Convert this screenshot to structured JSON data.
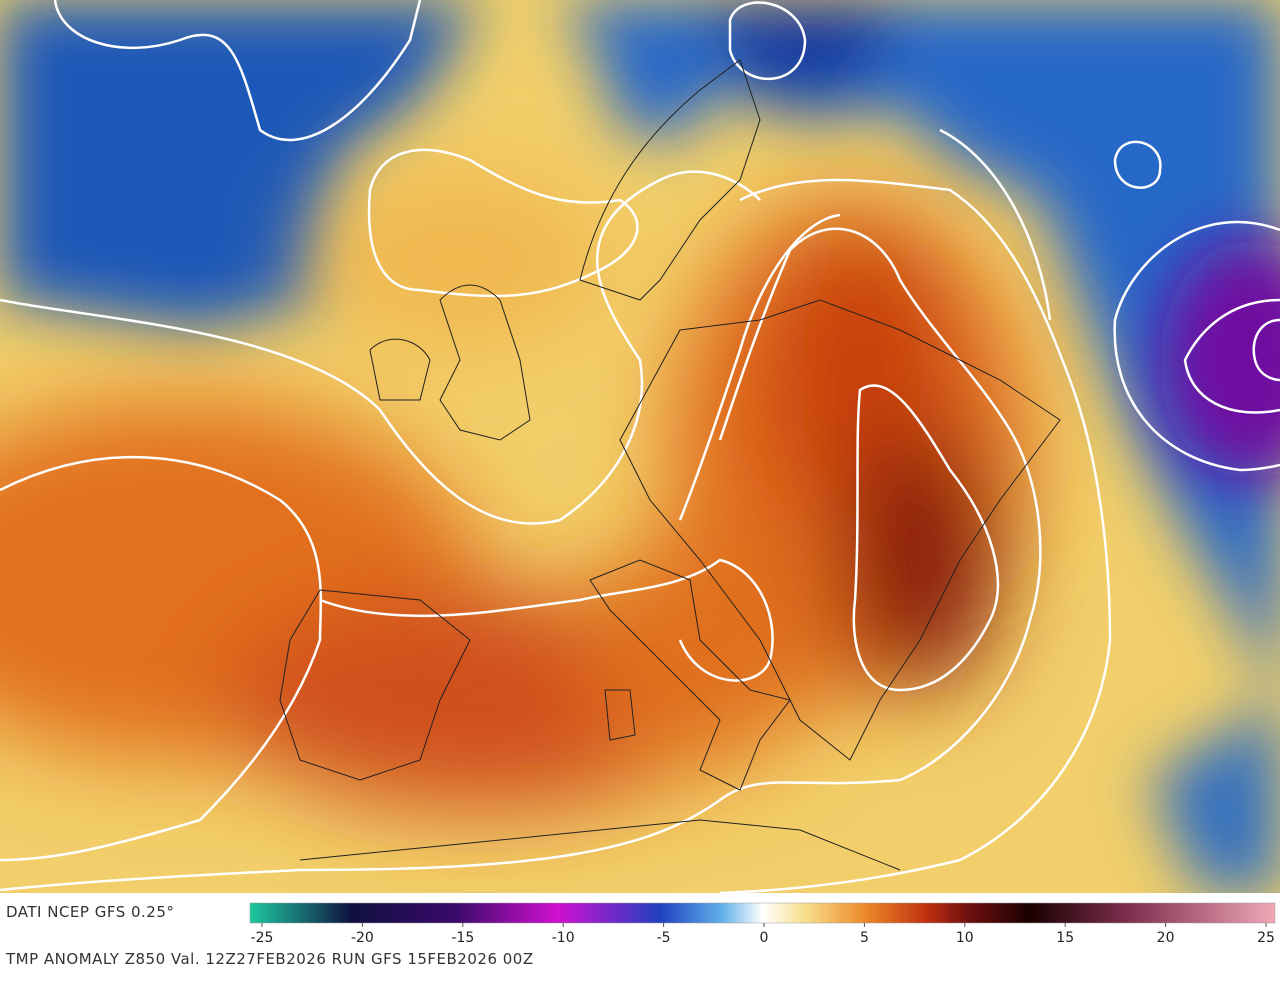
{
  "caption": {
    "source": "DATI NCEP GFS 0.25°",
    "description": "TMP ANOMALY Z850 Val. 12Z27FEB2026 RUN GFS 15FEB2026 00Z"
  },
  "colorbar": {
    "lim": [
      -25,
      25
    ],
    "ticks": [
      -25,
      -20,
      -15,
      -10,
      -5,
      0,
      5,
      10,
      15,
      20,
      25
    ]
  }
}
